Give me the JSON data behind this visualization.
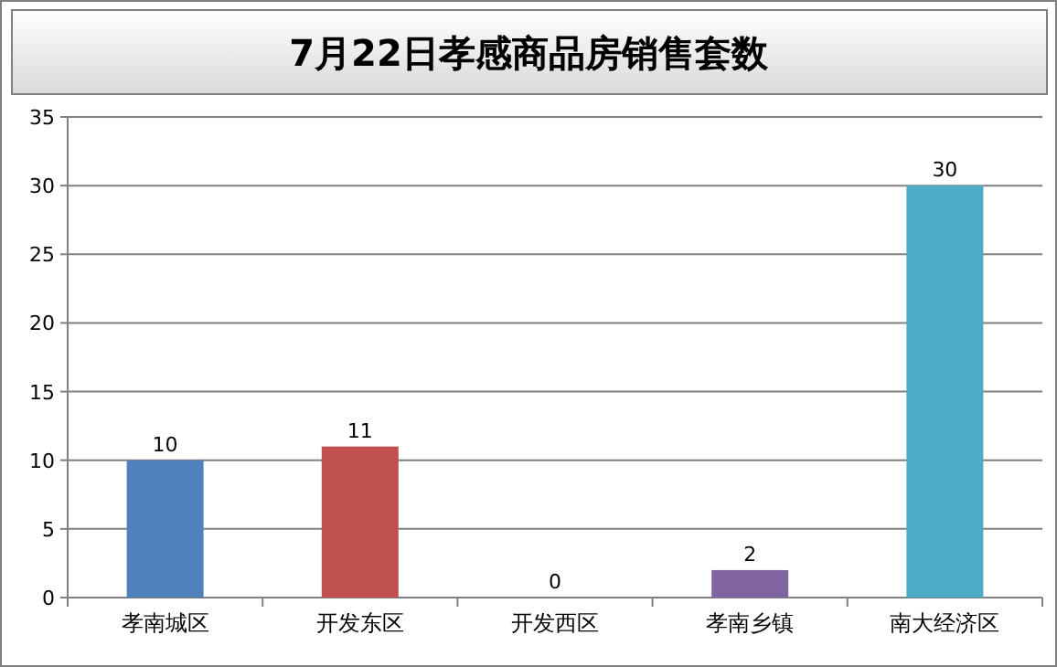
{
  "chart_data": {
    "type": "bar",
    "title": "7月22日孝感商品房销售套数",
    "categories": [
      "孝南城区",
      "开发东区",
      "开发西区",
      "孝南乡镇",
      "南大经济区"
    ],
    "values": [
      10,
      11,
      0,
      2,
      30
    ],
    "colors": [
      "#4f81bd",
      "#c0504d",
      null,
      "#8064a2",
      "#4bacc6"
    ],
    "ylim": [
      0,
      35
    ],
    "yticks": [
      0,
      5,
      10,
      15,
      20,
      25,
      30,
      35
    ],
    "grid": "y",
    "data_labels": true
  }
}
